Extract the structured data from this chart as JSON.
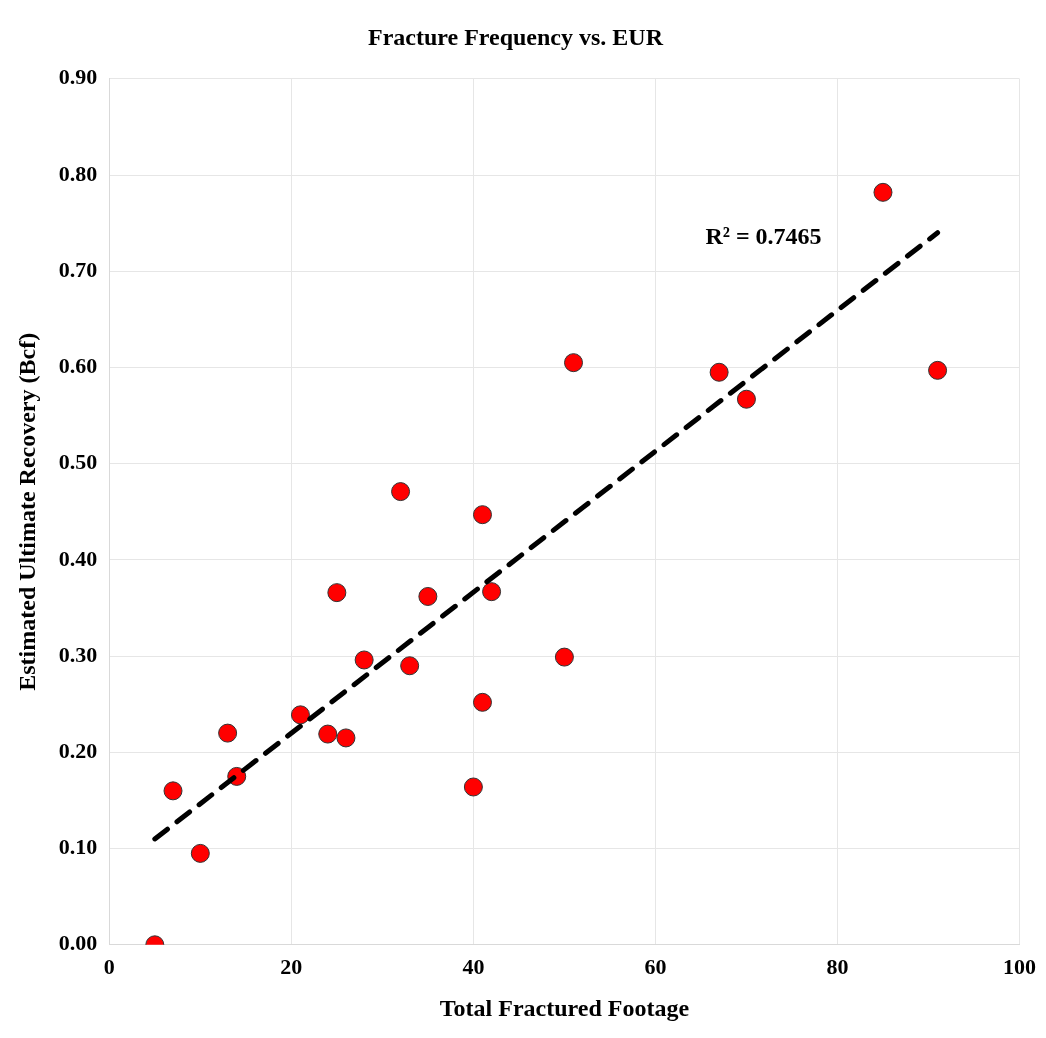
{
  "chart_data": {
    "type": "scatter",
    "title": "Fracture Frequency vs. EUR",
    "xlabel": "Total Fractured Footage",
    "ylabel": "Estimated Ultimate Recovery (Bcf)",
    "xlim": [
      0,
      100
    ],
    "xticks": [
      0,
      20,
      40,
      60,
      80,
      100
    ],
    "ylim": [
      0,
      0.9
    ],
    "yticks": [
      {
        "value": 0,
        "label": "0.00"
      },
      {
        "value": 0.1,
        "label": "0.10"
      },
      {
        "value": 0.2,
        "label": "0.20"
      },
      {
        "value": 0.3,
        "label": "0.30"
      },
      {
        "value": 0.4,
        "label": "0.40"
      },
      {
        "value": 0.5,
        "label": "0.50"
      },
      {
        "value": 0.6,
        "label": "0.60"
      },
      {
        "value": 0.7,
        "label": "0.70"
      },
      {
        "value": 0.8,
        "label": "0.80"
      },
      {
        "value": 0.9,
        "label": "0.90"
      }
    ],
    "grid": true,
    "series": [
      {
        "marker": "circle",
        "color": "#ff0000",
        "x": [
          5,
          7,
          10,
          13,
          14,
          21,
          24,
          26,
          28,
          33,
          41,
          40,
          50,
          51,
          32,
          41,
          25,
          35,
          42,
          85,
          67,
          70,
          91
        ],
        "values": [
          0.0,
          0.16,
          0.095,
          0.22,
          0.175,
          0.239,
          0.219,
          0.215,
          0.296,
          0.29,
          0.252,
          0.164,
          0.299,
          0.605,
          0.471,
          0.447,
          0.366,
          0.362,
          0.367,
          0.782,
          0.595,
          0.567,
          0.597
        ]
      },
      {
        "type": "line",
        "color": "#000000",
        "line_style": "dashed",
        "x": [
          5,
          91
        ],
        "values": [
          0.11,
          0.74
        ]
      }
    ],
    "annotations": [
      "R² = 0.7465"
    ]
  }
}
